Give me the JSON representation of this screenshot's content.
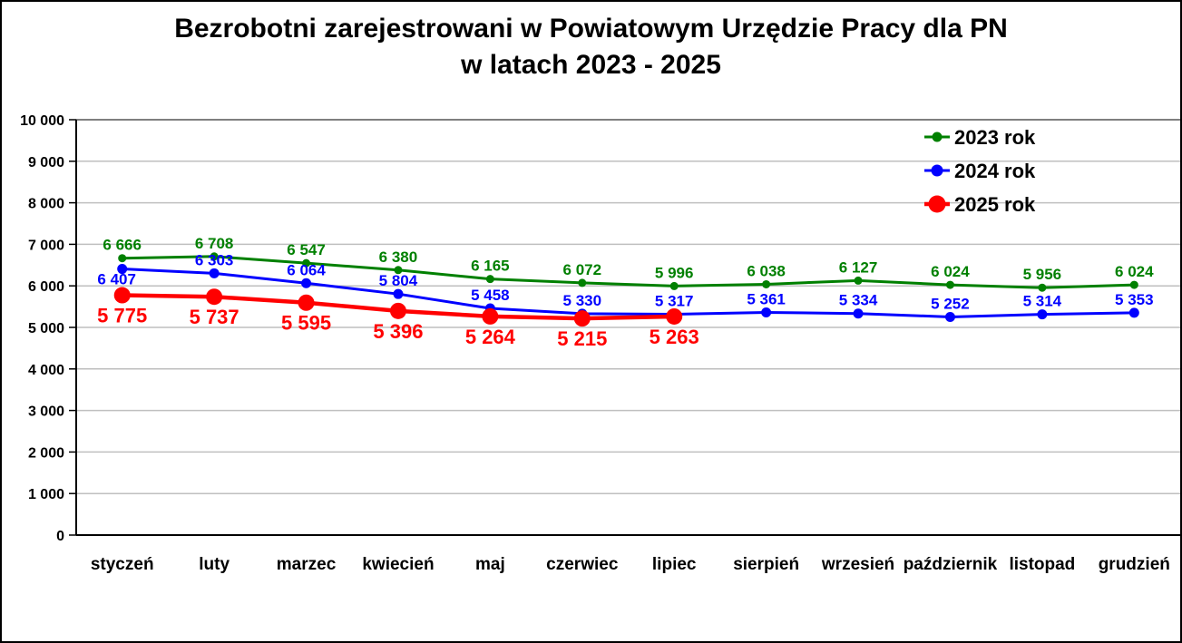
{
  "title": {
    "line1": "Bezrobotni zarejestrowani w Powiatowym Urzędzie Pracy dla PN",
    "line2": "w latach 2023 - 2025"
  },
  "chart_data": {
    "type": "line",
    "categories": [
      "styczeń",
      "luty",
      "marzec",
      "kwiecień",
      "maj",
      "czerwiec",
      "lipiec",
      "sierpień",
      "wrzesień",
      "październik",
      "listopad",
      "grudzień"
    ],
    "series": [
      {
        "name": "2023 rok",
        "color": "#008000",
        "label_position": "above",
        "values": [
          6666,
          6708,
          6547,
          6380,
          6165,
          6072,
          5996,
          6038,
          6127,
          6024,
          5956,
          6024
        ]
      },
      {
        "name": "2024 rok",
        "color": "#0000FF",
        "label_position": "above",
        "values": [
          6407,
          6303,
          6064,
          5804,
          5458,
          5330,
          5317,
          5361,
          5334,
          5252,
          5314,
          5353
        ]
      },
      {
        "name": "2025 rok",
        "color": "#FF0000",
        "label_position": "below",
        "values": [
          5775,
          5737,
          5595,
          5396,
          5264,
          5215,
          5263
        ]
      }
    ],
    "label_overrides": [
      {
        "series": 1,
        "index": 0,
        "position": "below",
        "dx": -6
      }
    ],
    "ylim": [
      0,
      10000
    ],
    "ytick_step": 1000,
    "grid": "horizontal",
    "legend_position": "top-right",
    "number_format": "space-thousands",
    "colors": {
      "gridline": "#BFBFBF",
      "axis": "#000000",
      "plot_border": "#7F7F7F",
      "text": "#000000"
    }
  }
}
